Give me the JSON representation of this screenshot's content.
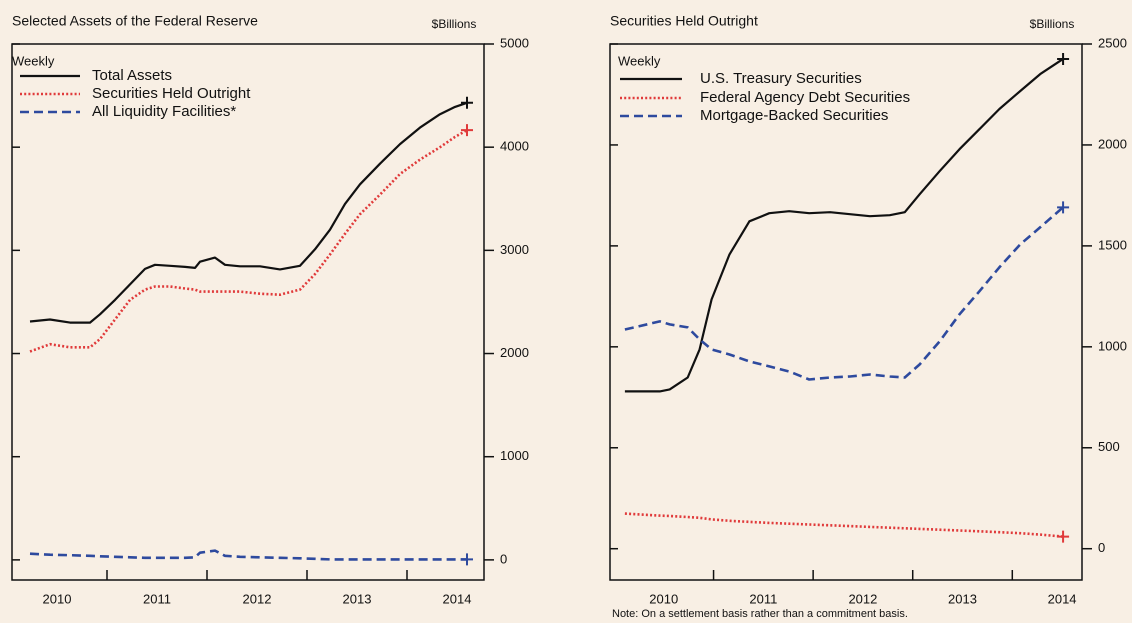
{
  "chart_data": [
    {
      "type": "line",
      "title": "Selected Assets of the Federal Reserve",
      "y_label": "$Billions",
      "legend_title": "Weekly",
      "x": [
        2010.23,
        2010.43,
        2010.63,
        2010.83,
        2010.93,
        2011.08,
        2011.23,
        2011.38,
        2011.48,
        2011.63,
        2011.78,
        2011.88,
        2011.93,
        2012.08,
        2012.18,
        2012.33,
        2012.53,
        2012.73,
        2012.93,
        2013.08,
        2013.23,
        2013.38,
        2013.53,
        2013.73,
        2013.93,
        2014.13,
        2014.33,
        2014.48,
        2014.6
      ],
      "series": [
        {
          "name": "Total Assets",
          "color": "#111111",
          "style": "solid",
          "values": [
            2310,
            2330,
            2300,
            2300,
            2380,
            2520,
            2670,
            2820,
            2860,
            2850,
            2840,
            2830,
            2890,
            2930,
            2860,
            2845,
            2845,
            2815,
            2850,
            3010,
            3200,
            3450,
            3640,
            3840,
            4030,
            4190,
            4320,
            4390,
            4430
          ]
        },
        {
          "name": "Securities Held Outright",
          "color": "#e03a3a",
          "style": "dotted",
          "values": [
            2020,
            2090,
            2060,
            2060,
            2140,
            2330,
            2520,
            2620,
            2650,
            2650,
            2630,
            2620,
            2600,
            2600,
            2600,
            2600,
            2580,
            2570,
            2620,
            2770,
            2960,
            3160,
            3350,
            3540,
            3740,
            3880,
            4000,
            4100,
            4165
          ]
        },
        {
          "name": "All Liquidity Facilities*",
          "color": "#2e4a9e",
          "style": "dashed",
          "values": [
            60,
            50,
            45,
            40,
            35,
            30,
            25,
            20,
            20,
            20,
            20,
            25,
            70,
            90,
            40,
            30,
            25,
            20,
            15,
            10,
            5,
            5,
            5,
            5,
            5,
            5,
            5,
            5,
            5
          ]
        }
      ],
      "xlim": [
        2010.05,
        2014.77
      ],
      "xticks": [
        {
          "value": 2010.5,
          "label": "2010"
        },
        {
          "value": 2011.5,
          "label": "2011"
        },
        {
          "value": 2012.5,
          "label": "2012"
        },
        {
          "value": 2013.5,
          "label": "2013"
        },
        {
          "value": 2014.5,
          "label": "2014"
        }
      ],
      "xminorticks": [
        2011,
        2012,
        2013,
        2014
      ],
      "ylim": [
        -195,
        5000
      ],
      "yticks": [
        0,
        1000,
        2000,
        3000,
        4000,
        5000
      ],
      "end_markers": true
    },
    {
      "type": "line",
      "title": "Securities Held Outright",
      "y_label": "$Billions",
      "legend_title": "Weekly",
      "note": "Note: On a settlement basis rather than a commitment basis.",
      "x": [
        2010.11,
        2010.46,
        2010.56,
        2010.74,
        2010.86,
        2010.98,
        2011.16,
        2011.36,
        2011.56,
        2011.76,
        2011.96,
        2012.17,
        2012.37,
        2012.57,
        2012.77,
        2012.92,
        2013.07,
        2013.27,
        2013.47,
        2013.67,
        2013.87,
        2014.08,
        2014.28,
        2014.51
      ],
      "series": [
        {
          "name": "U.S. Treasury Securities",
          "color": "#111111",
          "style": "solid",
          "values": [
            779,
            779,
            789,
            848,
            987,
            1235,
            1458,
            1622,
            1662,
            1672,
            1662,
            1667,
            1657,
            1647,
            1652,
            1667,
            1756,
            1870,
            1979,
            2078,
            2178,
            2267,
            2351,
            2426
          ]
        },
        {
          "name": "Federal Agency Debt Securities",
          "color": "#e03a3a",
          "style": "dotted",
          "values": [
            174,
            164,
            162,
            157,
            153,
            145,
            138,
            133,
            128,
            124,
            120,
            116,
            112,
            108,
            104,
            101,
            98,
            94,
            90,
            86,
            82,
            77,
            70,
            60
          ]
        },
        {
          "name": "Mortgage-Backed Securities",
          "color": "#2e4a9e",
          "style": "dashed",
          "values": [
            1086,
            1126,
            1111,
            1096,
            1037,
            987,
            962,
            928,
            903,
            878,
            838,
            848,
            853,
            863,
            853,
            848,
            913,
            1027,
            1161,
            1275,
            1394,
            1508,
            1592,
            1691
          ]
        }
      ],
      "xlim": [
        2009.96,
        2014.7
      ],
      "xticks": [
        {
          "value": 2010.5,
          "label": "2010"
        },
        {
          "value": 2011.5,
          "label": "2011"
        },
        {
          "value": 2012.5,
          "label": "2012"
        },
        {
          "value": 2013.5,
          "label": "2013"
        },
        {
          "value": 2014.5,
          "label": "2014"
        }
      ],
      "xminorticks": [
        2011,
        2012,
        2013,
        2014
      ],
      "ylim": [
        -155,
        2500
      ],
      "yticks": [
        0,
        500,
        1000,
        1500,
        2000,
        2500
      ],
      "end_markers": true
    }
  ]
}
